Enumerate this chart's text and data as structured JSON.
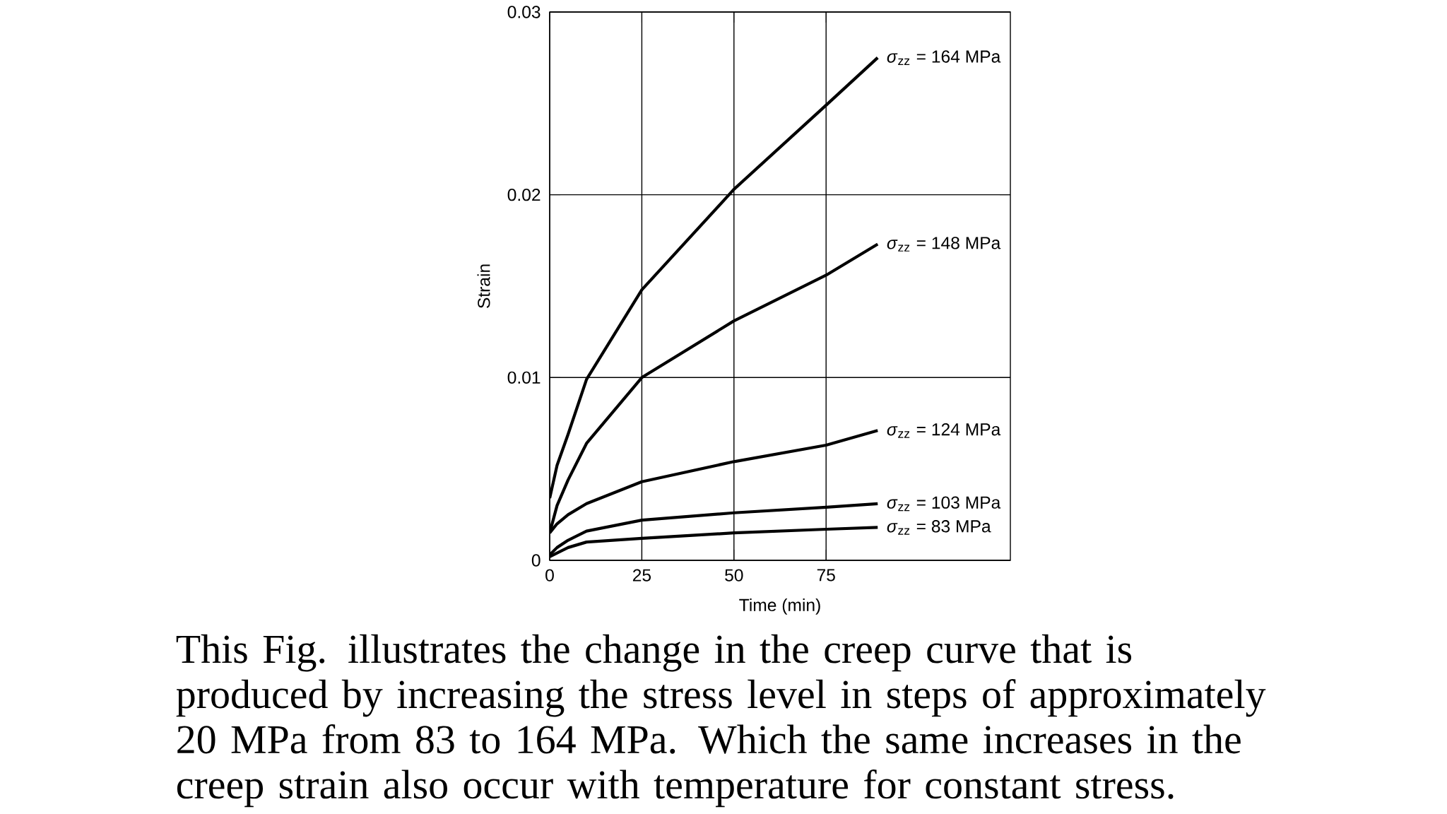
{
  "chart_data": {
    "type": "line",
    "xlabel": "Time (min)",
    "ylabel": "Strain",
    "xlim": [
      0,
      125
    ],
    "xticks": [
      0,
      25,
      50,
      75
    ],
    "ylim": [
      0,
      0.03
    ],
    "yticks": [
      0,
      0.01,
      0.02,
      0.03
    ],
    "grid": true,
    "legend": false,
    "marker": "none",
    "line_style": "solid",
    "x": [
      0,
      2,
      5,
      10,
      25,
      50,
      75,
      89
    ],
    "series": [
      {
        "name": "*σ*$_{zz}$ = 164 MPa",
        "color": "#000000",
        "values": [
          0.0034,
          0.0052,
          0.0069,
          0.0099,
          0.0148,
          0.0203,
          0.0249,
          0.0275
        ]
      },
      {
        "name": "*σ*$_{zz}$ = 148 MPa",
        "color": "#000000",
        "values": [
          0.0015,
          0.003,
          0.0044,
          0.0064,
          0.01,
          0.0131,
          0.0156,
          0.0173
        ]
      },
      {
        "name": "*σ*$_{zz}$ = 124 MPa",
        "color": "#000000",
        "values": [
          0.0015,
          0.002,
          0.0025,
          0.0031,
          0.0043,
          0.0054,
          0.0063,
          0.0071
        ]
      },
      {
        "name": "*σ*$_{zz}$ = 103 MPa",
        "color": "#000000",
        "values": [
          0.0003,
          0.0007,
          0.0011,
          0.0016,
          0.0022,
          0.0026,
          0.0029,
          0.0031
        ]
      },
      {
        "name": "*σ*$_{zz}$ = 83 MPa",
        "color": "#000000",
        "values": [
          0.0002,
          0.0004,
          0.0007,
          0.001,
          0.0012,
          0.0015,
          0.0017,
          0.0018
        ]
      }
    ],
    "annotations": [
      "This Fig. illustrates the change in the creep curve that is produced by increasing the stress level in steps of approximately 20 MPa from 83 to 164 MPa. Which the same increases in the creep strain also occur with temperature for constant stress."
    ]
  }
}
